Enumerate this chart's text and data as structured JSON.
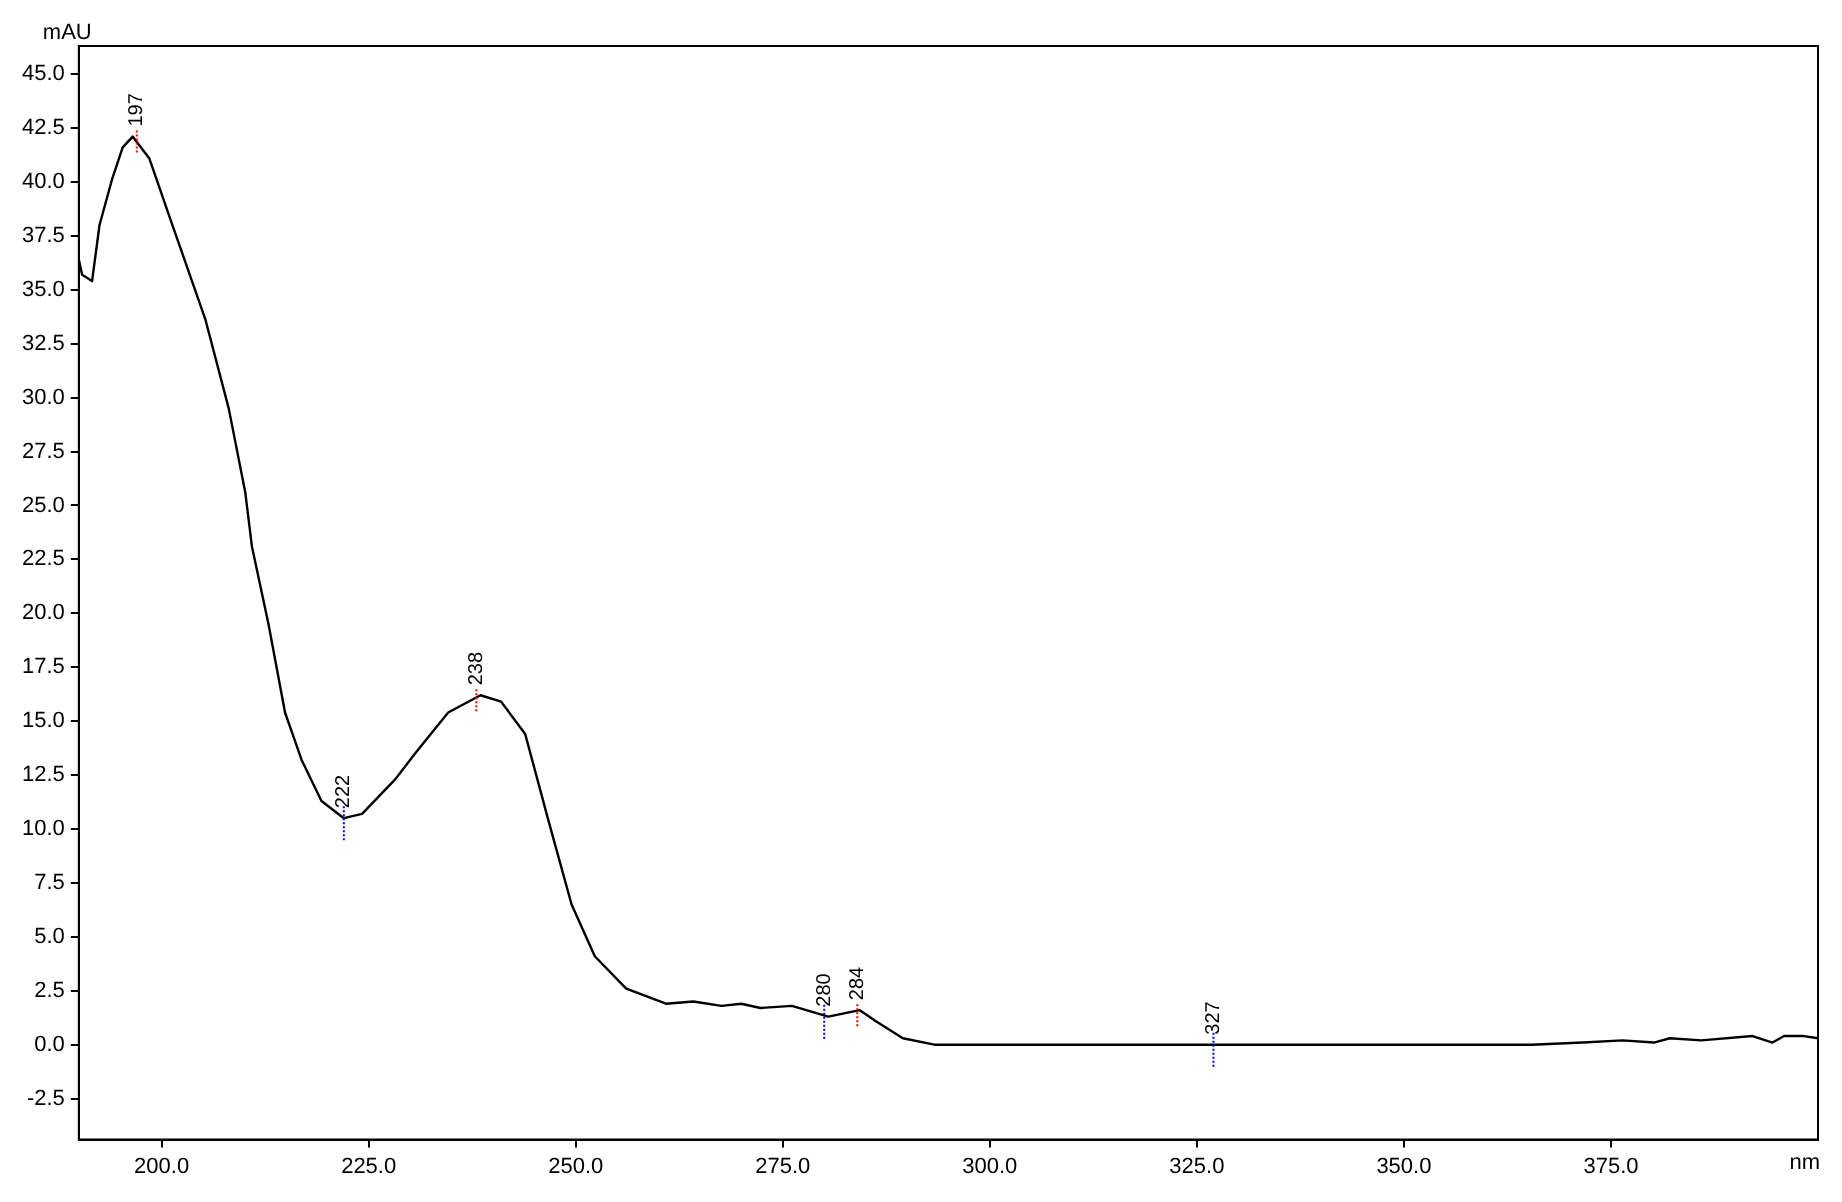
{
  "chart_data": {
    "type": "line",
    "xlabel": "nm",
    "ylabel": "mAU",
    "series": [
      {
        "color": "#000000",
        "x": [
          190,
          190.4,
          191.6,
          192.5,
          194.0,
          195.3,
          196.5,
          198.5,
          201.3,
          205.3,
          208.1,
          210.1,
          210.9,
          212.9,
          214.9,
          216.9,
          219.3,
          222,
          224.2,
          228.2,
          230.6,
          234.6,
          238.5,
          241.0,
          243.9,
          246.7,
          249.5,
          252.3,
          256.1,
          260.9,
          264.2,
          267.6,
          270,
          272.3,
          276.1,
          280.5,
          284.3,
          286.2,
          289.5,
          293.3,
          365.4,
          371.6,
          376.4,
          380.2,
          382.1,
          385.9,
          392.1,
          394.5,
          395.9,
          398.3,
          400
        ],
        "values": [
          36.4,
          35.7,
          35.4,
          38.0,
          40.1,
          41.6,
          42.1,
          41.1,
          38.0,
          33.6,
          29.5,
          25.6,
          23.1,
          19.5,
          15.4,
          13.2,
          11.3,
          10.5,
          10.7,
          12.3,
          13.5,
          15.4,
          16.2,
          15.9,
          14.4,
          10.4,
          6.5,
          4.1,
          2.6,
          1.9,
          2.0,
          1.8,
          1.9,
          1.7,
          1.8,
          1.3,
          1.6,
          1.1,
          0.3,
          0,
          0,
          0.1,
          0.2,
          0.1,
          0.3,
          0.2,
          0.4,
          0.1,
          0.4,
          0.4,
          0.3
        ]
      }
    ],
    "xlim": [
      190,
      400
    ],
    "ylim": [
      -4.4,
      46.3
    ],
    "xticks": [
      {
        "value": 200,
        "label": "200.0"
      },
      {
        "value": 225,
        "label": "225.0"
      },
      {
        "value": 250,
        "label": "250.0"
      },
      {
        "value": 275,
        "label": "275.0"
      },
      {
        "value": 300,
        "label": "300.0"
      },
      {
        "value": 325,
        "label": "325.0"
      },
      {
        "value": 350,
        "label": "350.0"
      },
      {
        "value": 375,
        "label": "375.0"
      }
    ],
    "yticks": [
      {
        "value": -2.5,
        "label": "-2.5"
      },
      {
        "value": 0,
        "label": "0.0"
      },
      {
        "value": 2.5,
        "label": "2.5"
      },
      {
        "value": 5,
        "label": "5.0"
      },
      {
        "value": 7.5,
        "label": "7.5"
      },
      {
        "value": 10,
        "label": "10.0"
      },
      {
        "value": 12.5,
        "label": "12.5"
      },
      {
        "value": 15,
        "label": "15.0"
      },
      {
        "value": 17.5,
        "label": "17.5"
      },
      {
        "value": 20,
        "label": "20.0"
      },
      {
        "value": 22.5,
        "label": "22.5"
      },
      {
        "value": 25,
        "label": "25.0"
      },
      {
        "value": 27.5,
        "label": "27.5"
      },
      {
        "value": 30,
        "label": "30.0"
      },
      {
        "value": 32.5,
        "label": "32.5"
      },
      {
        "value": 35,
        "label": "35.0"
      },
      {
        "value": 37.5,
        "label": "37.5"
      },
      {
        "value": 40,
        "label": "40.0"
      },
      {
        "value": 42.5,
        "label": "42.5"
      },
      {
        "value": 45,
        "label": "45.0"
      }
    ],
    "annotations": [
      {
        "text": "197",
        "x": 197,
        "y": 42.1
      },
      {
        "text": "222",
        "x": 222,
        "y": 10.5
      },
      {
        "text": "238",
        "x": 238,
        "y": 16.2
      },
      {
        "text": "280",
        "x": 280,
        "y": 1.3
      },
      {
        "text": "284",
        "x": 284,
        "y": 1.6
      },
      {
        "text": "327",
        "x": 327,
        "y": 0
      }
    ],
    "grid": false,
    "legend": false,
    "marker": "none",
    "line_style": "solid"
  }
}
